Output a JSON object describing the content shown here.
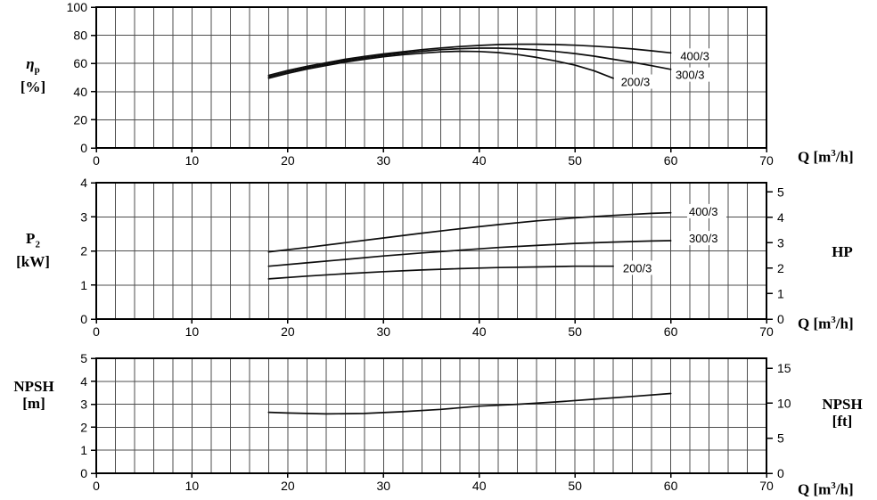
{
  "colors": {
    "background": "#ffffff",
    "curve": "#0d0d0d",
    "grid": "#4d4d4d",
    "axis": "#000000",
    "text": "#000000"
  },
  "titles": {
    "eta": {
      "main": "η",
      "sub": "p",
      "unit": "[%]"
    },
    "p2": {
      "main": "P",
      "sub": "2",
      "unit": "[kW]"
    },
    "npsh_left": {
      "main": "NPSH",
      "unit": "[m]"
    },
    "q": {
      "pre": "Q [m",
      "sup": "3",
      "post": "/h]"
    },
    "hp": "HP",
    "npsh_right": {
      "main": "NPSH",
      "unit": "[ft]"
    }
  },
  "chart_data": [
    {
      "type": "line",
      "panel": "efficiency",
      "title": "Pump efficiency curves",
      "xlabel": "Q [m³/h]",
      "ylabel": "ηp [%]",
      "xlim": [
        0,
        70
      ],
      "ylim": [
        0,
        100
      ],
      "x_ticks": [
        0,
        10,
        20,
        30,
        40,
        50,
        60,
        70
      ],
      "y_ticks": [
        0,
        20,
        40,
        60,
        80,
        100
      ],
      "x_grid_step": 2,
      "y_grid_step": 20,
      "grid": true,
      "series": [
        {
          "name": "400/3",
          "points": [
            [
              18,
              51.5
            ],
            [
              20,
              55
            ],
            [
              22,
              58
            ],
            [
              24,
              60.5
            ],
            [
              26,
              63
            ],
            [
              28,
              65
            ],
            [
              30,
              66.8
            ],
            [
              32,
              68.3
            ],
            [
              34,
              69.8
            ],
            [
              36,
              71
            ],
            [
              38,
              72
            ],
            [
              40,
              72.8
            ],
            [
              42,
              73.4
            ],
            [
              44,
              73.7
            ],
            [
              46,
              73.7
            ],
            [
              48,
              73.4
            ],
            [
              50,
              73
            ],
            [
              52,
              72.3
            ],
            [
              54,
              71.4
            ],
            [
              56,
              70.3
            ],
            [
              58,
              69
            ],
            [
              60,
              67.5
            ]
          ]
        },
        {
          "name": "300/3",
          "points": [
            [
              18,
              50.5
            ],
            [
              20,
              54
            ],
            [
              22,
              57
            ],
            [
              24,
              59.5
            ],
            [
              26,
              62
            ],
            [
              28,
              64
            ],
            [
              30,
              65.8
            ],
            [
              32,
              67.3
            ],
            [
              34,
              68.7
            ],
            [
              36,
              69.8
            ],
            [
              38,
              70.5
            ],
            [
              40,
              70.9
            ],
            [
              42,
              70.9
            ],
            [
              44,
              70.5
            ],
            [
              46,
              69.7
            ],
            [
              48,
              68.5
            ],
            [
              50,
              67
            ],
            [
              52,
              65.2
            ],
            [
              54,
              63
            ],
            [
              56,
              60.8
            ],
            [
              58,
              58.4
            ],
            [
              60,
              55.8
            ]
          ]
        },
        {
          "name": "200/3",
          "points": [
            [
              18,
              49.5
            ],
            [
              20,
              53
            ],
            [
              22,
              56
            ],
            [
              24,
              58.5
            ],
            [
              26,
              61
            ],
            [
              28,
              63
            ],
            [
              30,
              64.8
            ],
            [
              32,
              66.2
            ],
            [
              34,
              67.3
            ],
            [
              36,
              68.2
            ],
            [
              38,
              68.7
            ],
            [
              40,
              68.5
            ],
            [
              42,
              67.7
            ],
            [
              44,
              66.3
            ],
            [
              46,
              64.3
            ],
            [
              48,
              61.8
            ],
            [
              50,
              58.8
            ],
            [
              52,
              54.8
            ],
            [
              54,
              49.5
            ]
          ]
        }
      ],
      "series_labels": [
        {
          "text": "400/3",
          "x": 61.0,
          "y": 65
        },
        {
          "text": "300/3",
          "x": 60.5,
          "y": 51.5
        },
        {
          "text": "200/3",
          "x": 54.8,
          "y": 46.5
        }
      ]
    },
    {
      "type": "line",
      "panel": "power",
      "title": "Pump shaft power curves",
      "xlabel": "Q [m³/h]",
      "ylabel": "P2 [kW]",
      "right_axis_label": "HP",
      "xlim": [
        0,
        70
      ],
      "ylim": [
        0,
        4
      ],
      "x_ticks": [
        0,
        10,
        20,
        30,
        40,
        50,
        60,
        70
      ],
      "y_ticks": [
        0,
        1,
        2,
        3,
        4
      ],
      "right_ticks": [
        0,
        1,
        2,
        3,
        4,
        5
      ],
      "right_scale": 0.7457,
      "x_grid_step": 2,
      "y_grid_step": 1,
      "grid": true,
      "series": [
        {
          "name": "400/3",
          "points": [
            [
              18,
              1.97
            ],
            [
              22,
              2.1
            ],
            [
              26,
              2.24
            ],
            [
              30,
              2.38
            ],
            [
              34,
              2.52
            ],
            [
              38,
              2.65
            ],
            [
              42,
              2.77
            ],
            [
              46,
              2.88
            ],
            [
              50,
              2.97
            ],
            [
              54,
              3.04
            ],
            [
              58,
              3.1
            ],
            [
              60,
              3.12
            ]
          ]
        },
        {
          "name": "300/3",
          "points": [
            [
              18,
              1.55
            ],
            [
              22,
              1.65
            ],
            [
              26,
              1.75
            ],
            [
              30,
              1.85
            ],
            [
              34,
              1.94
            ],
            [
              38,
              2.02
            ],
            [
              42,
              2.1
            ],
            [
              46,
              2.16
            ],
            [
              50,
              2.22
            ],
            [
              54,
              2.26
            ],
            [
              58,
              2.29
            ],
            [
              60,
              2.3
            ]
          ]
        },
        {
          "name": "200/3",
          "points": [
            [
              18,
              1.18
            ],
            [
              22,
              1.26
            ],
            [
              26,
              1.33
            ],
            [
              30,
              1.39
            ],
            [
              34,
              1.44
            ],
            [
              38,
              1.48
            ],
            [
              42,
              1.51
            ],
            [
              46,
              1.53
            ],
            [
              50,
              1.55
            ],
            [
              54,
              1.55
            ]
          ]
        }
      ],
      "series_labels": [
        {
          "text": "400/3",
          "x": 61.9,
          "y": 3.14
        },
        {
          "text": "300/3",
          "x": 61.9,
          "y": 2.35
        },
        {
          "text": "200/3",
          "x": 55.0,
          "y": 1.48
        }
      ]
    },
    {
      "type": "line",
      "panel": "npsh",
      "title": "NPSH required curve",
      "xlabel": "Q [m³/h]",
      "ylabel": "NPSH [m]",
      "right_axis_label": "NPSH [ft]",
      "xlim": [
        0,
        70
      ],
      "ylim": [
        0,
        5
      ],
      "x_ticks": [
        0,
        10,
        20,
        30,
        40,
        50,
        60,
        70
      ],
      "y_ticks": [
        0,
        1,
        2,
        3,
        4,
        5
      ],
      "right_ticks": [
        0,
        5,
        10,
        15
      ],
      "right_scale": 0.3048,
      "x_grid_step": 2,
      "y_grid_step": 1,
      "grid": true,
      "series": [
        {
          "name": "NPSH",
          "points": [
            [
              18,
              2.65
            ],
            [
              20,
              2.62
            ],
            [
              24,
              2.58
            ],
            [
              28,
              2.6
            ],
            [
              32,
              2.68
            ],
            [
              36,
              2.78
            ],
            [
              40,
              2.92
            ],
            [
              44,
              3.0
            ],
            [
              48,
              3.1
            ],
            [
              52,
              3.22
            ],
            [
              56,
              3.34
            ],
            [
              60,
              3.47
            ]
          ]
        }
      ],
      "series_labels": []
    }
  ]
}
